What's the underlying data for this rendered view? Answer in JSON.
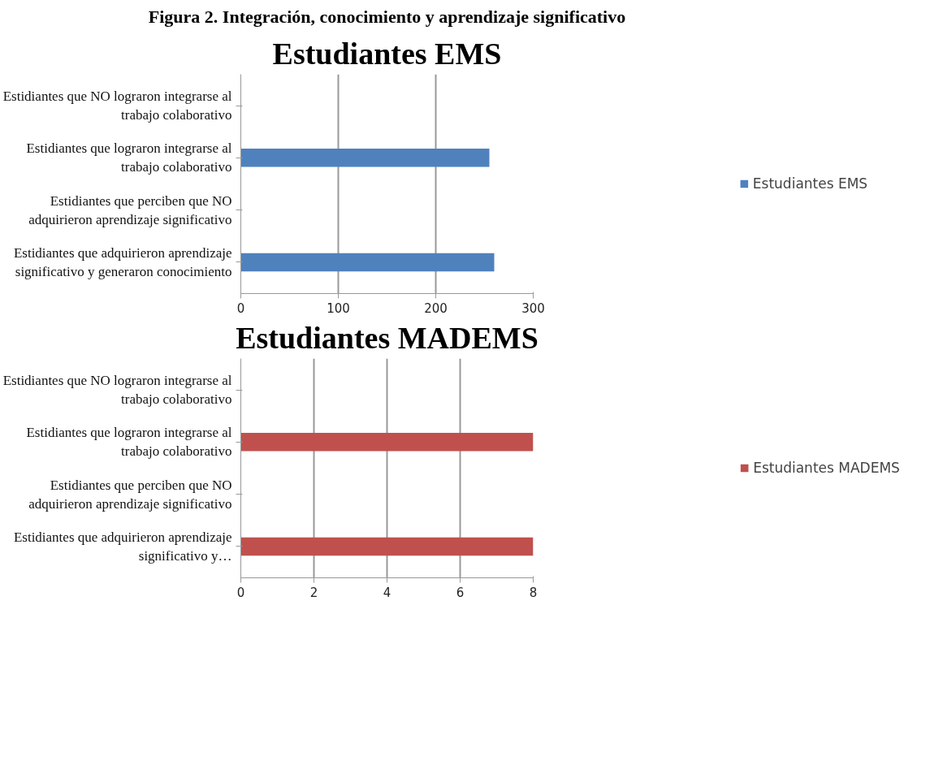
{
  "chart_data": [
    {
      "type": "bar",
      "orientation": "horizontal",
      "title": "Estudiantes EMS",
      "annotations": [
        "Figura 2. Integración, conocimiento y aprendizaje significativo"
      ],
      "categories": [
        "Estidiantes que NO lograron integrarse al trabajo colaborativo",
        "Estidiantes que lograron integrarse al trabajo colaborativo",
        "Estidiantes que perciben que NO adquirieron aprendizaje significativo",
        "Estidiantes que adquirieron aprendizaje significativo y generaron conocimiento"
      ],
      "series": [
        {
          "name": "Estudiantes EMS",
          "color": "#4f81bd",
          "values": [
            0,
            255,
            0,
            260
          ]
        }
      ],
      "xlim": [
        0,
        300
      ],
      "xticks": [
        0,
        100,
        200,
        300
      ],
      "grid": "x",
      "legend": "right"
    },
    {
      "type": "bar",
      "orientation": "horizontal",
      "title": "Estudiantes MADEMS",
      "categories": [
        "Estidiantes que NO lograron integrarse al trabajo colaborativo",
        "Estidiantes que lograron integrarse al trabajo colaborativo",
        "Estidiantes que perciben que NO adquirieron aprendizaje significativo",
        "Estidiantes que adquirieron aprendizaje significativo y…"
      ],
      "series": [
        {
          "name": "Estudiantes MADEMS",
          "color": "#c0504d",
          "values": [
            0,
            8,
            0,
            8
          ]
        }
      ],
      "xlim": [
        0,
        8
      ],
      "xticks": [
        0,
        2,
        4,
        6,
        8
      ],
      "grid": "x",
      "legend": "right"
    }
  ]
}
